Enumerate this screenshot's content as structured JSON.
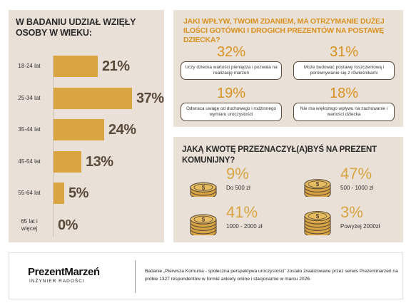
{
  "age_panel": {
    "title": "W BADANIU UDZIAŁ WZIĘŁY OSOBY W WIEKU:"
  },
  "chart_data": {
    "type": "bar",
    "orientation": "horizontal",
    "title": "W BADANIU UDZIAŁ WZIĘŁY OSOBY W WIEKU:",
    "categories": [
      "18-24 lat",
      "25-34 lat",
      "35-44 lat",
      "45-54 lat",
      "55-64 lat",
      "65 lat i więcej"
    ],
    "values": [
      21,
      37,
      24,
      13,
      5,
      0
    ],
    "value_labels": [
      "21%",
      "37%",
      "24%",
      "13%",
      "5%",
      "0%"
    ],
    "unit": "%",
    "xlim": [
      0,
      37
    ],
    "grid": false,
    "bar_color": "#d9a542"
  },
  "q1_panel": {
    "title": "JAKI WPŁYW, TWOIM ZDANIEM, MA OTRZYMANIE DUŻEJ ILOŚCI GOTÓWKI I DROGICH PREZENTÓW NA POSTAWĘ DZIECKA?",
    "items": [
      {
        "pct": "32%",
        "text": "Uczy dziecka wartości pieniądza i pozwala na realizację marzeń"
      },
      {
        "pct": "31%",
        "text": "Może budować postawę roszczeniową i porównywanie się z rówieśnikami"
      },
      {
        "pct": "19%",
        "text": "Odwraca uwagę od duchowego i rodzinnego wymiaru uroczystości"
      },
      {
        "pct": "18%",
        "text": "Nie ma większego wpływu na zachowanie i wartości dziecka"
      }
    ]
  },
  "q2_panel": {
    "title": "JAKĄ KWOTĘ PRZEZNACZYŁ(A)BYŚ NA PREZENT KOMUNIJNY?",
    "items": [
      {
        "pct": "9%",
        "range": "Do 500 zł",
        "coins": 2
      },
      {
        "pct": "47%",
        "range": "500 - 1000 zł",
        "coins": 3
      },
      {
        "pct": "41%",
        "range": "1000 - 2000 zł",
        "coins": 4
      },
      {
        "pct": "3%",
        "range": "Powyżej 2000zł",
        "coins": 5
      }
    ]
  },
  "footer": {
    "brand_name": "PrezentMarzeń",
    "brand_tag": "INŻYNIER RADOŚCI",
    "note": "Badanie „Pierwsza Komunia - społeczna perspektywa uroczystości” zostało zrealizowane przez serwis Prezentmarzeń na próbie 1327 respondentów w formie ankiety online i stacjonarnie w marcu 2026."
  },
  "colors": {
    "panel": "#e9e0d8",
    "gold": "#d9a542",
    "orange": "#d9921f",
    "dark": "#5a4a3a"
  },
  "icons": {
    "coin_stack": "coin-stack-icon"
  }
}
